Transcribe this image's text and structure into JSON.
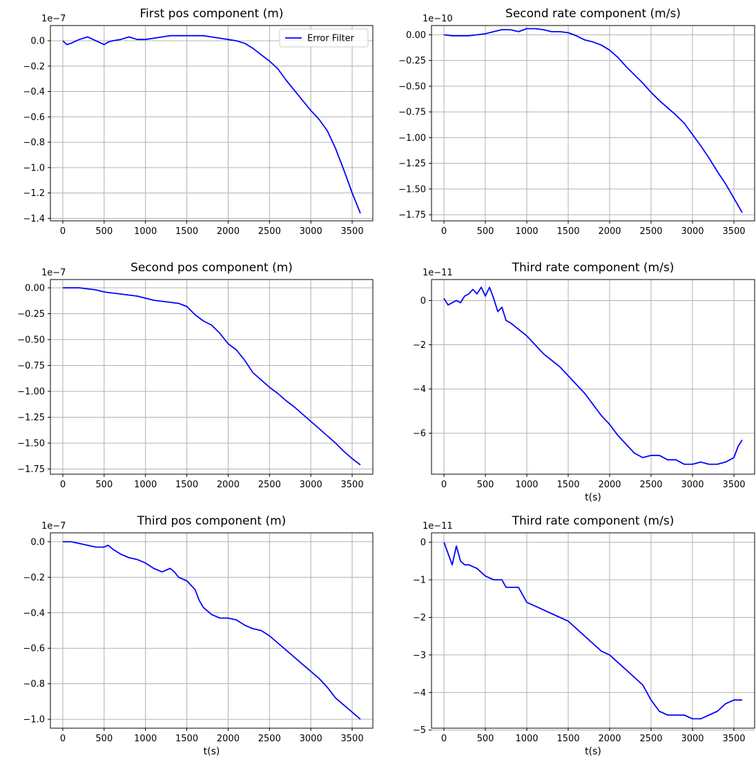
{
  "chart_data": [
    {
      "type": "line",
      "title": "First pos component (m)",
      "xlabel": "",
      "ylabel": "",
      "offset_text": "1e−7",
      "xlim": [
        -150,
        3750
      ],
      "ylim": [
        -1.42,
        0.12
      ],
      "xticks": [
        0,
        500,
        1000,
        1500,
        2000,
        2500,
        3000,
        3500
      ],
      "yticks": [
        0.0,
        -0.2,
        -0.4,
        -0.6,
        -0.8,
        -1.0,
        -1.2,
        -1.4
      ],
      "ytick_decimals": 1,
      "grid": true,
      "legend": {
        "placement": "top-right",
        "entries": [
          "Error Filter"
        ]
      },
      "series": [
        {
          "name": "Error Filter",
          "color": "#0000ff",
          "x": [
            0,
            50,
            100,
            200,
            300,
            400,
            500,
            550,
            600,
            700,
            800,
            900,
            1000,
            1100,
            1200,
            1300,
            1400,
            1500,
            1600,
            1700,
            1800,
            1900,
            2000,
            2100,
            2200,
            2300,
            2400,
            2500,
            2600,
            2700,
            2800,
            2900,
            3000,
            3100,
            3200,
            3300,
            3400,
            3500,
            3550,
            3600
          ],
          "y": [
            0.0,
            -0.03,
            -0.02,
            0.01,
            0.03,
            0.0,
            -0.03,
            -0.01,
            0.0,
            0.01,
            0.03,
            0.01,
            0.01,
            0.02,
            0.03,
            0.04,
            0.04,
            0.04,
            0.04,
            0.04,
            0.03,
            0.02,
            0.01,
            0.0,
            -0.02,
            -0.06,
            -0.11,
            -0.16,
            -0.22,
            -0.31,
            -0.39,
            -0.47,
            -0.55,
            -0.62,
            -0.71,
            -0.85,
            -1.02,
            -1.2,
            -1.28,
            -1.36
          ]
        }
      ]
    },
    {
      "type": "line",
      "title": "Second rate component (m/s)",
      "xlabel": "",
      "ylabel": "",
      "offset_text": "1e−10",
      "xlim": [
        -150,
        3750
      ],
      "ylim": [
        -1.81,
        0.09
      ],
      "xticks": [
        0,
        500,
        1000,
        1500,
        2000,
        2500,
        3000,
        3500
      ],
      "yticks": [
        0.0,
        -0.25,
        -0.5,
        -0.75,
        -1.0,
        -1.25,
        -1.5,
        -1.75
      ],
      "ytick_decimals": 2,
      "grid": true,
      "series": [
        {
          "color": "#0000ff",
          "x": [
            0,
            100,
            200,
            300,
            400,
            500,
            600,
            700,
            800,
            900,
            1000,
            1100,
            1200,
            1300,
            1400,
            1500,
            1600,
            1700,
            1800,
            1900,
            2000,
            2100,
            2200,
            2300,
            2400,
            2500,
            2600,
            2700,
            2800,
            2900,
            3000,
            3100,
            3200,
            3300,
            3400,
            3500,
            3600
          ],
          "y": [
            0.0,
            -0.01,
            -0.01,
            -0.01,
            0.0,
            0.01,
            0.03,
            0.05,
            0.05,
            0.03,
            0.06,
            0.06,
            0.05,
            0.03,
            0.03,
            0.02,
            -0.01,
            -0.05,
            -0.07,
            -0.1,
            -0.15,
            -0.22,
            -0.31,
            -0.39,
            -0.47,
            -0.56,
            -0.64,
            -0.71,
            -0.78,
            -0.86,
            -0.97,
            -1.08,
            -1.2,
            -1.33,
            -1.45,
            -1.59,
            -1.73
          ]
        }
      ]
    },
    {
      "type": "line",
      "title": "Second pos component (m)",
      "xlabel": "",
      "ylabel": "",
      "offset_text": "1e−7",
      "xlim": [
        -150,
        3750
      ],
      "ylim": [
        -1.8,
        0.08
      ],
      "xticks": [
        0,
        500,
        1000,
        1500,
        2000,
        2500,
        3000,
        3500
      ],
      "yticks": [
        0.0,
        -0.25,
        -0.5,
        -0.75,
        -1.0,
        -1.25,
        -1.5,
        -1.75
      ],
      "ytick_decimals": 2,
      "grid": true,
      "series": [
        {
          "color": "#0000ff",
          "x": [
            0,
            100,
            200,
            300,
            400,
            500,
            600,
            700,
            800,
            900,
            1000,
            1100,
            1200,
            1300,
            1400,
            1500,
            1600,
            1700,
            1800,
            1900,
            2000,
            2100,
            2200,
            2300,
            2400,
            2500,
            2600,
            2700,
            2800,
            2900,
            3000,
            3100,
            3200,
            3300,
            3400,
            3500,
            3600
          ],
          "y": [
            0.0,
            0.0,
            0.0,
            -0.01,
            -0.02,
            -0.04,
            -0.05,
            -0.06,
            -0.07,
            -0.08,
            -0.1,
            -0.12,
            -0.13,
            -0.14,
            -0.15,
            -0.18,
            -0.26,
            -0.32,
            -0.36,
            -0.44,
            -0.54,
            -0.6,
            -0.7,
            -0.82,
            -0.89,
            -0.96,
            -1.02,
            -1.09,
            -1.15,
            -1.22,
            -1.29,
            -1.36,
            -1.43,
            -1.5,
            -1.58,
            -1.65,
            -1.71
          ]
        }
      ]
    },
    {
      "type": "line",
      "title": "Third rate component (m/s)",
      "xlabel": "t(s)",
      "ylabel": "",
      "offset_text": "1e−11",
      "xlim": [
        -150,
        3750
      ],
      "ylim": [
        -7.85,
        0.95
      ],
      "xticks": [
        0,
        500,
        1000,
        1500,
        2000,
        2500,
        3000,
        3500
      ],
      "yticks": [
        0,
        -2,
        -4,
        -6
      ],
      "ytick_decimals": 0,
      "grid": true,
      "series": [
        {
          "color": "#0000ff",
          "x": [
            0,
            50,
            100,
            150,
            200,
            250,
            300,
            350,
            400,
            450,
            500,
            550,
            600,
            650,
            700,
            750,
            800,
            900,
            1000,
            1100,
            1200,
            1300,
            1400,
            1500,
            1600,
            1700,
            1800,
            1900,
            2000,
            2100,
            2200,
            2300,
            2400,
            2500,
            2600,
            2700,
            2800,
            2900,
            3000,
            3100,
            3200,
            3300,
            3400,
            3500,
            3550,
            3600
          ],
          "y": [
            0.1,
            -0.2,
            -0.1,
            0.0,
            -0.1,
            0.2,
            0.3,
            0.5,
            0.3,
            0.6,
            0.2,
            0.6,
            0.1,
            -0.5,
            -0.3,
            -0.9,
            -1.0,
            -1.3,
            -1.6,
            -2.0,
            -2.4,
            -2.7,
            -3.0,
            -3.4,
            -3.8,
            -4.2,
            -4.7,
            -5.2,
            -5.6,
            -6.1,
            -6.5,
            -6.9,
            -7.1,
            -7.0,
            -7.0,
            -7.2,
            -7.2,
            -7.4,
            -7.4,
            -7.3,
            -7.4,
            -7.4,
            -7.3,
            -7.1,
            -6.6,
            -6.3
          ]
        }
      ]
    },
    {
      "type": "line",
      "title": "Third pos component (m)",
      "xlabel": "t(s)",
      "ylabel": "",
      "offset_text": "1e−7",
      "xlim": [
        -150,
        3750
      ],
      "ylim": [
        -1.05,
        0.05
      ],
      "xticks": [
        0,
        500,
        1000,
        1500,
        2000,
        2500,
        3000,
        3500
      ],
      "yticks": [
        0.0,
        -0.2,
        -0.4,
        -0.6,
        -0.8,
        -1.0
      ],
      "ytick_decimals": 1,
      "grid": true,
      "series": [
        {
          "color": "#0000ff",
          "x": [
            0,
            100,
            200,
            300,
            400,
            500,
            550,
            600,
            700,
            800,
            900,
            1000,
            1100,
            1200,
            1300,
            1350,
            1400,
            1500,
            1600,
            1650,
            1700,
            1800,
            1900,
            2000,
            2100,
            2200,
            2300,
            2400,
            2500,
            2600,
            2700,
            2800,
            2900,
            3000,
            3100,
            3200,
            3300,
            3400,
            3500,
            3600
          ],
          "y": [
            0.0,
            0.0,
            -0.01,
            -0.02,
            -0.03,
            -0.03,
            -0.02,
            -0.04,
            -0.07,
            -0.09,
            -0.1,
            -0.12,
            -0.15,
            -0.17,
            -0.15,
            -0.17,
            -0.2,
            -0.22,
            -0.27,
            -0.33,
            -0.37,
            -0.41,
            -0.43,
            -0.43,
            -0.44,
            -0.47,
            -0.49,
            -0.5,
            -0.53,
            -0.57,
            -0.61,
            -0.65,
            -0.69,
            -0.73,
            -0.77,
            -0.82,
            -0.88,
            -0.92,
            -0.96,
            -1.0
          ]
        }
      ]
    },
    {
      "type": "line",
      "title": "Third rate component (m/s)",
      "xlabel": "t(s)",
      "ylabel": "",
      "offset_text": "1e−11",
      "xlim": [
        -150,
        3750
      ],
      "ylim": [
        -4.95,
        0.25
      ],
      "xticks": [
        0,
        500,
        1000,
        1500,
        2000,
        2500,
        3000,
        3500
      ],
      "yticks": [
        0,
        -1,
        -2,
        -3,
        -4,
        -5
      ],
      "ytick_decimals": 0,
      "grid": true,
      "series": [
        {
          "color": "#0000ff",
          "x": [
            0,
            50,
            100,
            150,
            200,
            250,
            300,
            400,
            500,
            600,
            700,
            750,
            800,
            900,
            950,
            1000,
            1100,
            1200,
            1300,
            1400,
            1500,
            1600,
            1700,
            1800,
            1900,
            2000,
            2100,
            2200,
            2300,
            2400,
            2500,
            2600,
            2700,
            2800,
            2900,
            3000,
            3100,
            3200,
            3300,
            3400,
            3500,
            3600
          ],
          "y": [
            0.0,
            -0.3,
            -0.6,
            -0.1,
            -0.5,
            -0.6,
            -0.6,
            -0.7,
            -0.9,
            -1.0,
            -1.0,
            -1.2,
            -1.2,
            -1.2,
            -1.4,
            -1.6,
            -1.7,
            -1.8,
            -1.9,
            -2.0,
            -2.1,
            -2.3,
            -2.5,
            -2.7,
            -2.9,
            -3.0,
            -3.2,
            -3.4,
            -3.6,
            -3.8,
            -4.2,
            -4.5,
            -4.6,
            -4.6,
            -4.6,
            -4.7,
            -4.7,
            -4.6,
            -4.5,
            -4.3,
            -4.2,
            -4.2
          ]
        }
      ]
    }
  ]
}
